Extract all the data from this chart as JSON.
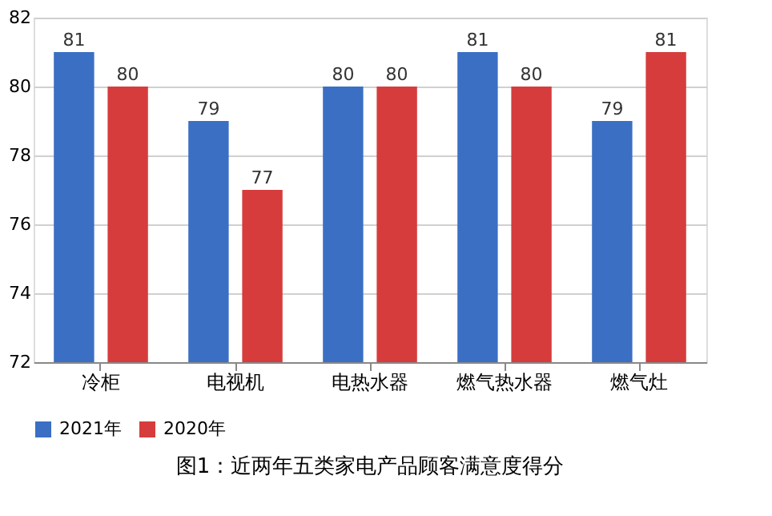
{
  "chart_data": {
    "type": "bar",
    "title": "图1：近两年五类家电产品顾客满意度得分",
    "categories": [
      "冷柜",
      "电视机",
      "电热水器",
      "燃气热水器",
      "燃气灶"
    ],
    "series": [
      {
        "name": "2021年",
        "color": "#3a6fc4",
        "values": [
          81,
          79,
          80,
          81,
          79
        ]
      },
      {
        "name": "2020年",
        "color": "#d63c3c",
        "values": [
          80,
          77,
          80,
          80,
          81
        ]
      }
    ],
    "ylim": [
      72,
      82
    ],
    "yticks": [
      72,
      74,
      76,
      78,
      80,
      82
    ],
    "grid": "y",
    "legend": "bottom",
    "data_labels": true
  }
}
